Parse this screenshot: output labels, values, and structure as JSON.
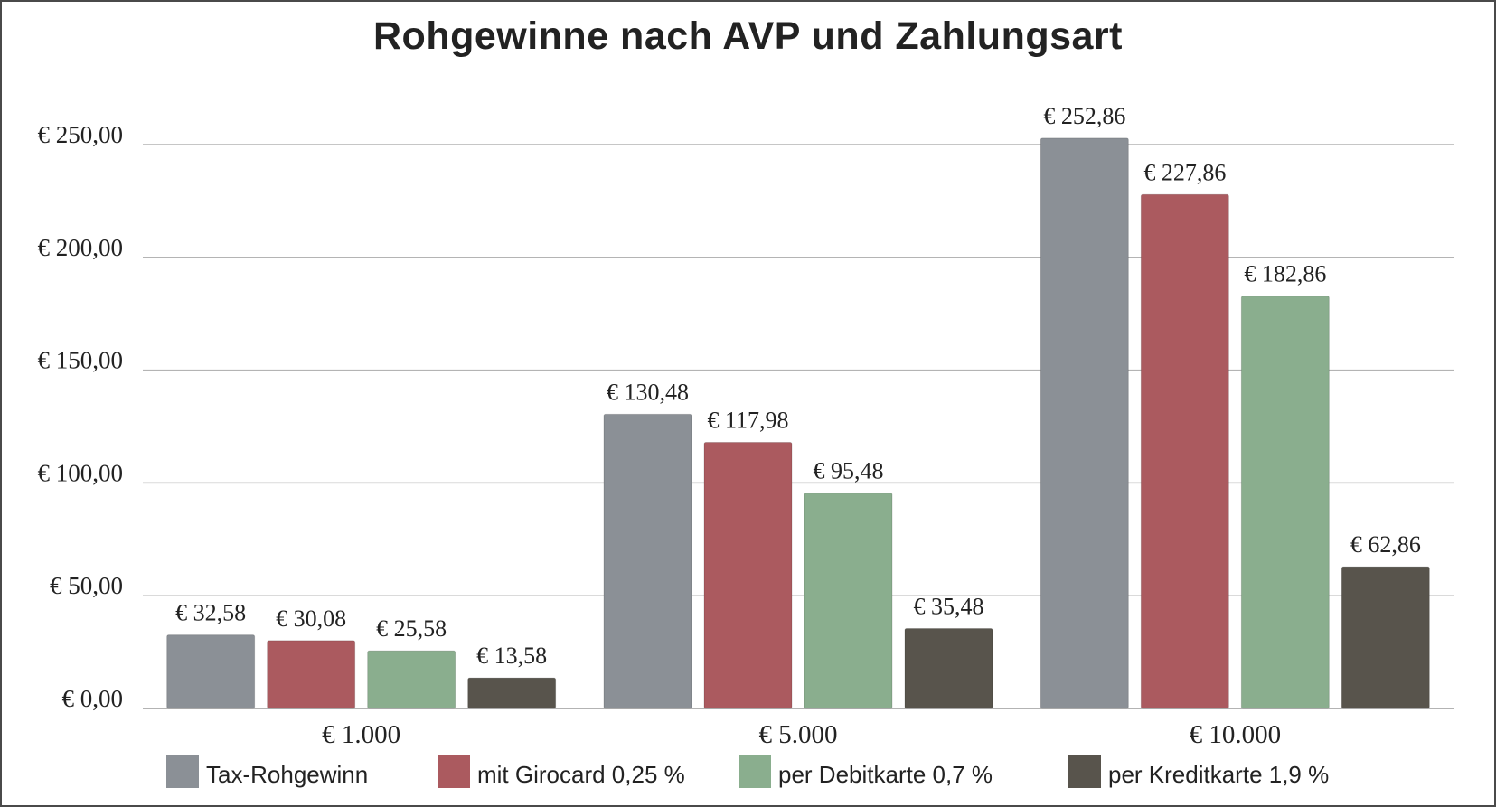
{
  "chart_data": {
    "type": "bar",
    "title": "Rohgewinne nach AVP und Zahlungsart",
    "xlabel": "",
    "ylabel": "",
    "categories": [
      "€ 1.000",
      "€ 5.000",
      "€ 10.000"
    ],
    "ylim": [
      0,
      250
    ],
    "yticks": [
      0,
      50,
      100,
      150,
      200,
      250
    ],
    "ytick_labels": [
      "€ 0,00",
      "€ 50,00",
      "€ 100,00",
      "€ 150,00",
      "€ 200,00",
      "€ 250,00"
    ],
    "grid": true,
    "legend_position": "bottom",
    "series": [
      {
        "name": "Tax-Rohgewinn",
        "color": "#8b9096",
        "values": [
          32.58,
          130.48,
          252.86
        ],
        "labels": [
          "€ 32,58",
          "€ 130,48",
          "€ 252,86"
        ]
      },
      {
        "name": "mit Girocard 0,25 %",
        "color": "#ab5a5f",
        "values": [
          30.08,
          117.98,
          227.86
        ],
        "labels": [
          "€ 30,08",
          "€ 117,98",
          "€ 227,86"
        ]
      },
      {
        "name": "per Debitkarte 0,7 %",
        "color": "#8aae8e",
        "values": [
          25.58,
          95.48,
          182.86
        ],
        "labels": [
          "€ 25,58",
          "€ 95,48",
          "€ 182,86"
        ]
      },
      {
        "name": "per Kreditkarte 1,9 %",
        "color": "#58544c",
        "values": [
          13.58,
          35.48,
          62.86
        ],
        "labels": [
          "€ 13,58",
          "€ 35,48",
          "€ 62,86"
        ]
      }
    ]
  }
}
